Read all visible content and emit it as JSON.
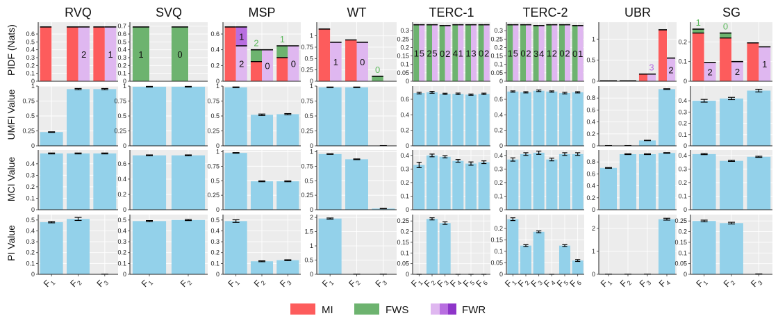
{
  "colors": {
    "MI": "#fd5c5c",
    "FWS": "#6db36f",
    "FWR": "#dfb7f0",
    "FWR_mid": "#b86ee0",
    "FWR_dark": "#8e35c9",
    "bar": "#93d1ea",
    "panel": "#ececec",
    "grid": "#ffffff",
    "fws_label": "#5cb85c",
    "fwr_label": "#b86ee0"
  },
  "legend": [
    {
      "key": "MI",
      "label": "MI"
    },
    {
      "key": "FWS",
      "label": "FWS"
    },
    {
      "key": "FWR",
      "label": "FWR"
    }
  ],
  "row_labels": [
    "PIDF (Nats)",
    "UMFI Value",
    "MCI Value",
    "PI Value"
  ],
  "chart_data": {
    "type": "bar",
    "title": "",
    "datasets": [
      {
        "name": "RVQ",
        "features": [
          "F1",
          "F2",
          "F3"
        ],
        "pidf": {
          "ylim": [
            0,
            0.75
          ],
          "ticks": [
            0,
            0.1,
            0.2,
            0.3,
            0.4,
            0.5,
            0.6
          ],
          "bars": [
            {
              "mi": 0.69,
              "fws": 0,
              "fwr": 0
            },
            {
              "mi": 0.69,
              "fws": 0,
              "fwr": 0.69,
              "fwr_label": "2"
            },
            {
              "mi": 0.69,
              "fws": 0,
              "fwr": 0.69,
              "fwr_label": "1"
            }
          ]
        },
        "umfi": {
          "ylim": [
            0,
            1
          ],
          "ticks": [
            0,
            0.25,
            0.5,
            0.75,
            1
          ],
          "values": [
            0.23,
            0.95,
            0.95
          ],
          "errors": [
            0.005,
            0.01,
            0.01
          ]
        },
        "mci": {
          "ylim": [
            0,
            0.52
          ],
          "ticks": [
            0,
            0.1,
            0.2,
            0.3,
            0.4
          ],
          "values": [
            0.49,
            0.49,
            0.49
          ],
          "errors": [
            0.004,
            0.004,
            0.004
          ]
        },
        "pi": {
          "ylim": [
            0,
            0.55
          ],
          "ticks": [
            0,
            0.1,
            0.2,
            0.3,
            0.4,
            0.5
          ],
          "values": [
            0.48,
            0.51,
            0.0
          ],
          "errors": [
            0.006,
            0.014,
            0.002
          ]
        }
      },
      {
        "name": "SVQ",
        "features": [
          "F1",
          "F2"
        ],
        "pidf": {
          "ylim": [
            0,
            0.75
          ],
          "ticks": [
            0,
            0.1,
            0.2,
            0.3,
            0.4,
            0.5,
            0.6,
            0.7
          ],
          "bars": [
            {
              "mi": 0,
              "fws": 0.69,
              "fwr": 0,
              "seg_label": "1"
            },
            {
              "mi": 0,
              "fws": 0.69,
              "fwr": 0,
              "seg_label": "0"
            }
          ]
        },
        "umfi": {
          "ylim": [
            0,
            1
          ],
          "ticks": [
            0,
            0.25,
            0.5,
            0.75,
            1
          ],
          "values": [
            0.99,
            0.99
          ],
          "errors": [
            0.005,
            0.005
          ]
        },
        "mci": {
          "ylim": [
            0,
            0.78
          ],
          "ticks": [
            0,
            0.2,
            0.4,
            0.6
          ],
          "values": [
            0.71,
            0.71
          ],
          "errors": [
            0.006,
            0.006
          ]
        },
        "pi": {
          "ylim": [
            0,
            0.55
          ],
          "ticks": [
            0,
            0.1,
            0.2,
            0.3,
            0.4,
            0.5
          ],
          "values": [
            0.49,
            0.5
          ],
          "errors": [
            0.005,
            0.005
          ]
        }
      },
      {
        "name": "MSP",
        "features": [
          "F1",
          "F2",
          "F3"
        ],
        "pidf": {
          "ylim": [
            0,
            0.75
          ],
          "ticks": [
            0,
            0.2,
            0.4,
            0.6
          ],
          "bars": [
            {
              "mi": 0.69,
              "fws": 0,
              "fwr": 0.69,
              "fwr_split": 0.45,
              "fwr_label": "2",
              "fwr_top_label": "1"
            },
            {
              "mi": 0.4,
              "fws": 0.4,
              "mi_cut": 0.25,
              "fwr": 0.4,
              "fwr_label": "0",
              "top_label": "2"
            },
            {
              "mi": 0.45,
              "fws": 0.45,
              "mi_cut": 0.3,
              "fwr": 0.45,
              "fwr_label": "0",
              "top_label": "1"
            }
          ]
        },
        "umfi": {
          "ylim": [
            0,
            1
          ],
          "ticks": [
            0,
            0.25,
            0.5,
            0.75,
            1
          ],
          "values": [
            0.98,
            0.52,
            0.53
          ],
          "errors": [
            0.006,
            0.012,
            0.01
          ]
        },
        "mci": {
          "ylim": [
            0,
            1.03
          ],
          "ticks": [
            0,
            0.25,
            0.5,
            0.75,
            1
          ],
          "values": [
            0.98,
            0.49,
            0.49
          ],
          "errors": [
            0.006,
            0.007,
            0.007
          ]
        },
        "pi": {
          "ylim": [
            0,
            0.55
          ],
          "ticks": [
            0,
            0.1,
            0.2,
            0.3,
            0.4,
            0.5
          ],
          "values": [
            0.49,
            0.12,
            0.13
          ],
          "errors": [
            0.012,
            0.004,
            0.004
          ]
        }
      },
      {
        "name": "WT",
        "features": [
          "F1",
          "F2",
          "F3"
        ],
        "pidf": {
          "ylim": [
            0,
            1.3
          ],
          "ticks": [
            0,
            0.25,
            0.5,
            0.75,
            1
          ],
          "bars": [
            {
              "mi": 1.15,
              "fws": 0,
              "fwr": 0.86,
              "fwr_label": "1"
            },
            {
              "mi": 0.91,
              "fws": 0,
              "fwr": 0.86,
              "fwr_label": "0"
            },
            {
              "mi": 0,
              "fws": 0.11,
              "fwr": 0,
              "top_label": "0"
            }
          ]
        },
        "umfi": {
          "ylim": [
            0,
            1
          ],
          "ticks": [
            0,
            0.25,
            0.5,
            0.75,
            1
          ],
          "values": [
            0.98,
            0.98,
            0.003
          ],
          "errors": [
            0.005,
            0.005,
            0.002
          ]
        },
        "mci": {
          "ylim": [
            0,
            1.03
          ],
          "ticks": [
            0,
            0.25,
            0.5,
            0.75,
            1
          ],
          "values": [
            0.96,
            0.87,
            0.02
          ],
          "errors": [
            0.005,
            0.006,
            0.002
          ]
        },
        "pi": {
          "ylim": [
            0,
            2.1
          ],
          "ticks": [
            0,
            0.5,
            1,
            1.5,
            2
          ],
          "values": [
            1.96,
            0.003,
            0.003
          ],
          "errors": [
            0.02,
            0.004,
            0.004
          ]
        }
      },
      {
        "name": "TERC-1",
        "features": [
          "F1",
          "F2",
          "F3",
          "F4",
          "F5",
          "F6"
        ],
        "pidf": {
          "ylim": [
            0,
            0.35
          ],
          "ticks": [
            0,
            0.05,
            0.1,
            0.15,
            0.2,
            0.25,
            0.3
          ],
          "bars": [
            {
              "mi": 0,
              "fws": 0.335,
              "fwr": 0.335,
              "seg_label": "1",
              "fwr_label": "5"
            },
            {
              "mi": 0,
              "fws": 0.335,
              "fwr": 0.335,
              "seg_label": "2",
              "fwr_label": "5"
            },
            {
              "mi": 0,
              "fws": 0.33,
              "fwr": 0.33,
              "seg_label": "0",
              "fwr_label": "2"
            },
            {
              "mi": 0,
              "fws": 0.335,
              "fwr": 0.335,
              "seg_label": "4",
              "fwr_label": "1"
            },
            {
              "mi": 0,
              "fws": 0.335,
              "fwr": 0.335,
              "seg_label": "1",
              "fwr_label": "3"
            },
            {
              "mi": 0,
              "fws": 0.335,
              "fwr": 0.335,
              "seg_label": "0",
              "fwr_label": "2"
            }
          ]
        },
        "umfi": {
          "ylim": [
            0,
            0.77
          ],
          "ticks": [
            0,
            0.2,
            0.4,
            0.6
          ],
          "values": [
            0.68,
            0.69,
            0.67,
            0.67,
            0.66,
            0.67
          ],
          "errors": [
            0.01,
            0.012,
            0.008,
            0.01,
            0.008,
            0.009
          ]
        },
        "mci": {
          "ylim": [
            0,
            0.44
          ],
          "ticks": [
            0,
            0.1,
            0.2,
            0.3,
            0.4
          ],
          "values": [
            0.33,
            0.4,
            0.39,
            0.36,
            0.34,
            0.35
          ],
          "errors": [
            0.02,
            0.01,
            0.008,
            0.01,
            0.012,
            0.01
          ]
        },
        "pi": {
          "ylim": [
            0,
            0.28
          ],
          "ticks": [
            0,
            0.05,
            0.1,
            0.15,
            0.2,
            0.25
          ],
          "values": [
            0,
            0.26,
            0.24,
            0,
            0,
            0
          ],
          "errors": [
            0,
            0.005,
            0.006,
            0,
            0,
            0
          ]
        }
      },
      {
        "name": "TERC-2",
        "features": [
          "F1",
          "F2",
          "F3",
          "F4",
          "F5",
          "F6"
        ],
        "pidf": {
          "ylim": [
            0,
            0.35
          ],
          "ticks": [
            0,
            0.05,
            0.1,
            0.15,
            0.2,
            0.25,
            0.3
          ],
          "bars": [
            {
              "mi": 0,
              "fws": 0.335,
              "fwr": 0.335,
              "seg_label": "1",
              "fwr_label": "5"
            },
            {
              "mi": 0,
              "fws": 0.335,
              "fwr": 0.335,
              "seg_label": "0",
              "fwr_label": "2"
            },
            {
              "mi": 0,
              "fws": 0.33,
              "fwr": 0.33,
              "seg_label": "3",
              "fwr_label": "4"
            },
            {
              "mi": 0,
              "fws": 0.335,
              "fwr": 0.335,
              "seg_label": "1",
              "fwr_label": "2"
            },
            {
              "mi": 0,
              "fws": 0.335,
              "fwr": 0.335,
              "seg_label": "0",
              "fwr_label": "2"
            },
            {
              "mi": 0,
              "fws": 0.33,
              "fwr": 0.33,
              "seg_label": "0",
              "fwr_label": "1"
            }
          ]
        },
        "umfi": {
          "ylim": [
            0,
            0.77
          ],
          "ticks": [
            0,
            0.2,
            0.4,
            0.6
          ],
          "values": [
            0.7,
            0.69,
            0.71,
            0.7,
            0.68,
            0.69
          ],
          "errors": [
            0.008,
            0.008,
            0.01,
            0.008,
            0.01,
            0.008
          ]
        },
        "mci": {
          "ylim": [
            0,
            0.44
          ],
          "ticks": [
            0,
            0.1,
            0.2,
            0.3,
            0.4
          ],
          "values": [
            0.37,
            0.41,
            0.42,
            0.37,
            0.41,
            0.41
          ],
          "errors": [
            0.012,
            0.01,
            0.012,
            0.01,
            0.01,
            0.01
          ]
        },
        "pi": {
          "ylim": [
            0,
            0.26
          ],
          "ticks": [
            0,
            0.05,
            0.1,
            0.15,
            0.2
          ],
          "values": [
            0.24,
            0.125,
            0.185,
            0,
            0.125,
            0.06
          ],
          "errors": [
            0.006,
            0.004,
            0.004,
            0,
            0.004,
            0.004
          ]
        }
      },
      {
        "name": "UBR",
        "features": [
          "F1",
          "F2",
          "F3",
          "F4"
        ],
        "pidf": {
          "ylim": [
            0,
            1.4
          ],
          "ticks": [
            0,
            0.5,
            1
          ],
          "bars": [
            {
              "mi": 0.01,
              "fws": 0,
              "fwr": 0.01
            },
            {
              "mi": 0.01,
              "fws": 0,
              "fwr": 0.01
            },
            {
              "mi": 0.17,
              "fws": 0,
              "fwr": 0.17,
              "top_label": "3"
            },
            {
              "mi": 1.22,
              "fws": 0,
              "fwr": 0.55,
              "fwr_label": "2"
            }
          ]
        },
        "umfi": {
          "ylim": [
            0,
            1
          ],
          "ticks": [
            0,
            0.2,
            0.4,
            0.6,
            0.8
          ],
          "values": [
            0.003,
            0.003,
            0.09,
            0.95
          ],
          "errors": [
            0.002,
            0.002,
            0.004,
            0.006
          ]
        },
        "mci": {
          "ylim": [
            0,
            1
          ],
          "ticks": [
            0,
            0.2,
            0.4,
            0.6,
            0.8
          ],
          "values": [
            0.7,
            0.93,
            0.93,
            0.95
          ],
          "errors": [
            0.006,
            0.006,
            0.006,
            0.006
          ]
        },
        "pi": {
          "ylim": [
            0,
            2.6
          ],
          "ticks": [
            0,
            1,
            2
          ],
          "values": [
            0.003,
            0.003,
            0.005,
            2.4
          ],
          "errors": [
            0.004,
            0.004,
            0.004,
            0.04
          ]
        }
      },
      {
        "name": "SG",
        "features": [
          "F1",
          "F2",
          "F3"
        ],
        "pidf": {
          "ylim": [
            0,
            0.3
          ],
          "ticks": [
            0,
            0.1,
            0.2
          ],
          "bars": [
            {
              "mi": 0.265,
              "fws": 0.265,
              "mi_cut": 0.245,
              "fwr": 0.095,
              "fwr_label": "2",
              "top_label": "1"
            },
            {
              "mi": 0.245,
              "fws": 0.245,
              "mi_cut": 0.22,
              "fwr": 0.1,
              "fwr_label": "2",
              "top_label": "0"
            },
            {
              "mi": 0.195,
              "fws": 0,
              "fwr": 0.175,
              "fwr_label": "1"
            }
          ]
        },
        "umfi": {
          "ylim": [
            0,
            0.53
          ],
          "ticks": [
            0,
            0.1,
            0.2,
            0.3,
            0.4
          ],
          "values": [
            0.4,
            0.42,
            0.49
          ],
          "errors": [
            0.012,
            0.01,
            0.012
          ]
        },
        "mci": {
          "ylim": [
            0,
            0.44
          ],
          "ticks": [
            0,
            0.1,
            0.2,
            0.3,
            0.4
          ],
          "values": [
            0.41,
            0.36,
            0.39
          ],
          "errors": [
            0.004,
            0.004,
            0.004
          ]
        },
        "pi": {
          "ylim": [
            0,
            0.28
          ],
          "ticks": [
            0,
            0.05,
            0.1,
            0.15,
            0.2,
            0.25
          ],
          "values": [
            0.25,
            0.24,
            0.0
          ],
          "errors": [
            0.004,
            0.004,
            0.002
          ]
        }
      }
    ]
  }
}
